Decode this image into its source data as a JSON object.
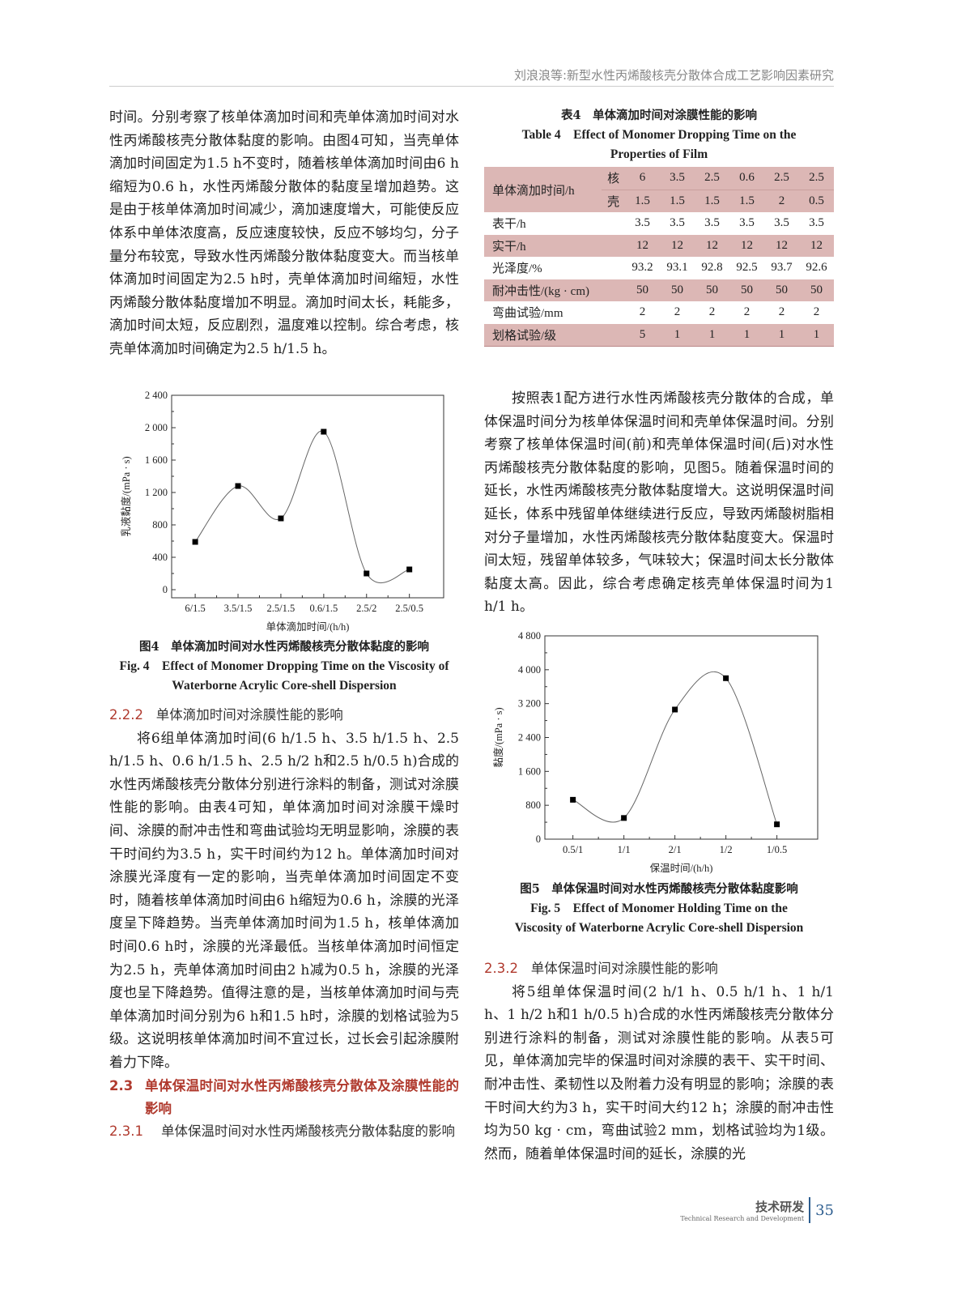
{
  "header": {
    "running_title": "刘浪浪等:新型水性丙烯酸核壳分散体合成工艺影响因素研究"
  },
  "left": {
    "p1": "时间。分别考察了核单体滴加时间和壳单体滴加时间对水性丙烯酸核壳分散体黏度的影响。由图4可知，当壳单体滴加时间固定为1.5 h不变时，随着核单体滴加时间由6 h缩短为0.6 h，水性丙烯酸分散体的黏度呈增加趋势。这是由于核单体滴加时间减少，滴加速度增大，可能使反应体系中单体浓度高，反应速度较快，反应不够均匀，分子量分布较宽，导致水性丙烯酸分散体黏度变大。而当核单体滴加时间固定为2.5 h时，壳单体滴加时间缩短，水性丙烯酸分散体黏度增加不明显。滴加时间太长，耗能多，滴加时间太短，反应剧烈，温度难以控制。综合考虑，核壳单体滴加时间确定为2.5 h/1.5 h。",
    "fig4_cap_cn": "图4　单体滴加时间对水性丙烯酸核壳分散体黏度的影响",
    "fig4_cap_en": "Fig. 4　Effect of Monomer Dropping Time on the Viscosity of Waterborne Acrylic Core-shell Dispersion",
    "s222_num": "2.2.2",
    "s222_title": "单体滴加时间对涂膜性能的影响",
    "p2": "将6组单体滴加时间(6 h/1.5 h、3.5 h/1.5 h、2.5 h/1.5 h、0.6 h/1.5 h、2.5 h/2 h和2.5 h/0.5 h)合成的水性丙烯酸核壳分散体分别进行涂料的制备，测试对涂膜性能的影响。由表4可知，单体滴加时间对涂膜干燥时间、涂膜的耐冲击性和弯曲试验均无明显影响，涂膜的表干时间约为3.5 h，实干时间约为12 h。单体滴加时间对涂膜光泽度有一定的影响，当壳单体滴加时间固定不变时，随着核单体滴加时间由6 h缩短为0.6 h，涂膜的光泽度呈下降趋势。当壳单体滴加时间为1.5 h，核单体滴加时间0.6 h时，涂膜的光泽最低。当核单体滴加时间恒定为2.5 h，壳单体滴加时间由2 h减为0.5 h，涂膜的光泽度也呈下降趋势。值得注意的是，当核单体滴加时间与壳单体滴加时间分别为6 h和1.5 h时，涂膜的划格试验为5级。这说明核单体滴加时间不宜过长，过长会引起涂膜附着力下降。",
    "s23_num": "2.3",
    "s23_title": "单体保温时间对水性丙烯酸核壳分散体及涂膜性能的影响",
    "s231_num": "2.3.1",
    "s231_title": "单体保温时间对水性丙烯酸核壳分散体黏度的影响"
  },
  "right": {
    "table_cap_cn": "表4　单体滴加时间对涂膜性能的影响",
    "table_cap_en": "Table 4　Effect of Monomer Dropping Time on the Properties of Film",
    "table": {
      "head_label": "单体滴加时间/h",
      "core_label": "核",
      "shell_label": "壳",
      "core": [
        "6",
        "3.5",
        "2.5",
        "0.6",
        "2.5",
        "2.5"
      ],
      "shell": [
        "1.5",
        "1.5",
        "1.5",
        "1.5",
        "2",
        "0.5"
      ],
      "rows": [
        {
          "label": "表干/h",
          "values": [
            "3.5",
            "3.5",
            "3.5",
            "3.5",
            "3.5",
            "3.5"
          ]
        },
        {
          "label": "实干/h",
          "values": [
            "12",
            "12",
            "12",
            "12",
            "12",
            "12"
          ]
        },
        {
          "label": "光泽度/%",
          "values": [
            "93.2",
            "93.1",
            "92.8",
            "92.5",
            "93.7",
            "92.6"
          ]
        },
        {
          "label": "耐冲击性/(kg · cm)",
          "values": [
            "50",
            "50",
            "50",
            "50",
            "50",
            "50"
          ]
        },
        {
          "label": "弯曲试验/mm",
          "values": [
            "2",
            "2",
            "2",
            "2",
            "2",
            "2"
          ]
        },
        {
          "label": "划格试验/级",
          "values": [
            "5",
            "1",
            "1",
            "1",
            "1",
            "1"
          ]
        }
      ],
      "shade_color": "#dcb7b5"
    },
    "p3": "按照表1配方进行水性丙烯酸核壳分散体的合成，单体保温时间分为核单体保温时间和壳单体保温时间。分别考察了核单体保温时间(前)和壳单体保温时间(后)对水性丙烯酸核壳分散体黏度的影响，见图5。随着保温时间的延长，水性丙烯酸核壳分散体黏度增大。这说明保温时间延长，体系中残留单体继续进行反应，导致丙烯酸树脂相对分子量增加，水性丙烯酸核壳分散体黏度变大。保温时间太短，残留单体较多，气味较大；保温时间太长分散体黏度太高。因此，综合考虑确定核壳单体保温时间为1 h/1 h。",
    "fig5_cap_cn": "图5　单体保温时间对水性丙烯酸核壳分散体黏度影响",
    "fig5_cap_en": "Fig. 5　Effect of Monomer Holding Time on the Viscosity of Waterborne Acrylic Core-shell Dispersion",
    "s232_num": "2.3.2",
    "s232_title": "单体保温时间对涂膜性能的影响",
    "p4": "将5组单体保温时间(2 h/1 h、0.5 h/1 h、1 h/1 h、1 h/2 h和1 h/0.5 h)合成的水性丙烯酸核壳分散体分别进行涂料的制备，测试对涂膜性能的影响。从表5可见，单体滴加完毕的保温时间对涂膜的表干、实干时间、耐冲击性、柔韧性以及附着力没有明显的影响；涂膜的表干时间大约为3 h，实干时间大约12 h；涂膜的耐冲击性均为50 kg · cm，弯曲试验2 mm，划格试验均为1级。然而，随着单体保温时间的延长，涂膜的光"
  },
  "footer": {
    "section_cn": "技术研发",
    "section_en": "Technical Research and Development",
    "page_number": "35",
    "accent": "#2c5d8f"
  },
  "chart_data": [
    {
      "type": "line",
      "x": [
        "6/1.5",
        "3.5/1.5",
        "2.5/1.5",
        "0.6/1.5",
        "2.5/2",
        "2.5/0.5"
      ],
      "values": [
        590,
        1280,
        880,
        1950,
        200,
        250
      ],
      "xlabel": "单体滴加时间/(h/h)",
      "ylabel": "乳液黏度/(mPa · s)",
      "ylim": [
        -100,
        2400
      ],
      "yticks": [
        "0",
        "400",
        "800",
        "1 200",
        "1 600",
        "2 000",
        "2 400"
      ],
      "ytick_values": [
        0,
        400,
        800,
        1200,
        1600,
        2000,
        2400
      ],
      "grid": false,
      "smooth": true,
      "marker": "square"
    },
    {
      "type": "line",
      "x": [
        "0.5/1",
        "1/1",
        "2/1",
        "1/2",
        "1/0.5"
      ],
      "values": [
        930,
        500,
        3060,
        3800,
        350
      ],
      "xlabel": "保温时间/(h/h)",
      "ylabel": "黏度/(mPa · s)",
      "ylim": [
        0,
        4800
      ],
      "yticks": [
        "0",
        "800",
        "1 600",
        "2 400",
        "3 200",
        "4 000",
        "4 800"
      ],
      "ytick_values": [
        0,
        800,
        1600,
        2400,
        3200,
        4000,
        4800
      ],
      "grid": false,
      "smooth": true,
      "marker": "square"
    }
  ]
}
